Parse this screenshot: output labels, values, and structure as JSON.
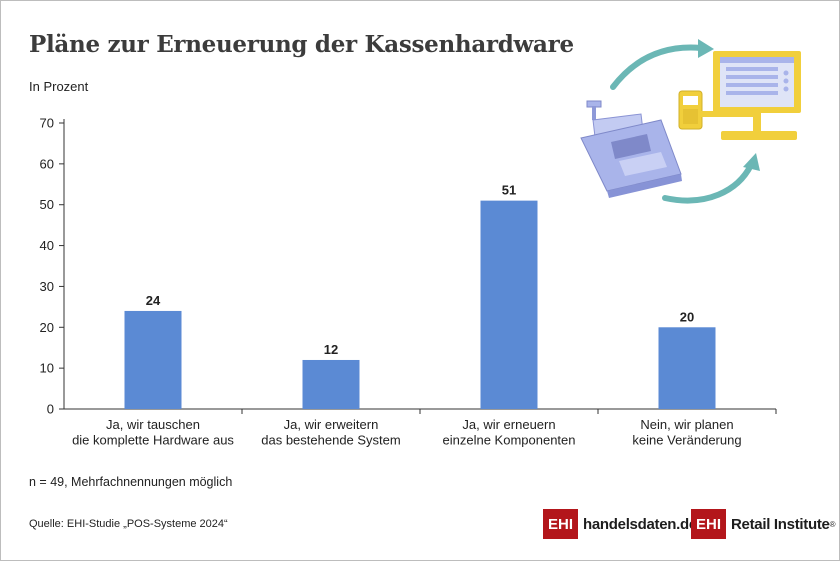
{
  "page": {
    "title": "Pläne zur Erneuerung der Kassenhardware",
    "subtitle": "In Prozent",
    "note": "n = 49, Mehrfachnennungen möglich",
    "source": "Quelle: EHI-Studie „POS-Systeme 2024“"
  },
  "logos": {
    "left": {
      "mark": "EHI",
      "text": "handelsdaten.de"
    },
    "right": {
      "mark": "EHI",
      "text": "Retail Institute",
      "registered": "®"
    }
  },
  "illustration": {
    "icons": [
      "cash-register-icon",
      "card-terminal-icon",
      "pos-monitor-icon",
      "cycle-arrow-icon"
    ]
  },
  "colors": {
    "bar": "#5b8ad4",
    "axis": "#333333",
    "logo_red": "#b3161b",
    "arrow": "#6bb7b5",
    "register": "#a9b4ea",
    "monitor": "#f1cf3c"
  },
  "chart_data": {
    "type": "bar",
    "categories": [
      [
        "Ja, wir tauschen",
        "die komplette Hardware aus"
      ],
      [
        "Ja, wir erweitern",
        "das bestehende System"
      ],
      [
        "Ja, wir erneuern",
        "einzelne Komponenten"
      ],
      [
        "Nein, wir planen",
        "keine Veränderung"
      ]
    ],
    "values": [
      24,
      12,
      51,
      20
    ],
    "data_labels": [
      "24",
      "12",
      "51",
      "20"
    ],
    "ylim": [
      0,
      70
    ],
    "yticks": [
      0,
      10,
      20,
      30,
      40,
      50,
      60,
      70
    ],
    "title": "Pläne zur Erneuerung der Kassenhardware",
    "ylabel": "In Prozent",
    "xlabel": "",
    "grid": false,
    "legend": "none"
  }
}
